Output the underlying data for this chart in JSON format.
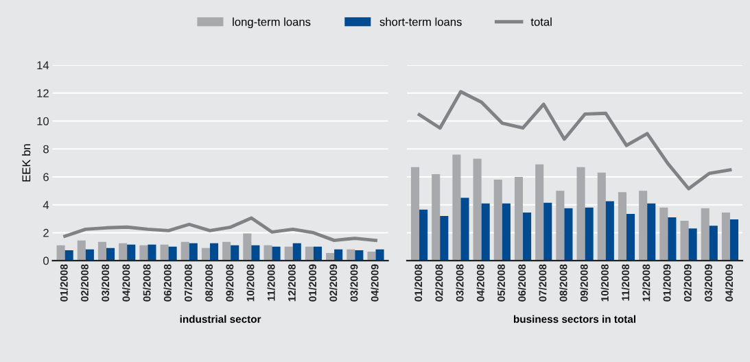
{
  "chart_data": [
    {
      "type": "bar",
      "xlabel": "industrial sector",
      "ylabel": "EEK bn",
      "legend": "top",
      "grid": "y",
      "ylim": [
        0,
        14
      ],
      "yticks": [
        0,
        2,
        4,
        6,
        8,
        10,
        12,
        14
      ],
      "categories": [
        "01/2008",
        "02/2008",
        "03/2008",
        "04/2008",
        "05/2008",
        "06/2008",
        "07/2008",
        "08/2008",
        "09/2008",
        "10/2008",
        "11/2008",
        "12/2008",
        "01/2009",
        "02/2009",
        "03/2009",
        "04/2009"
      ],
      "series": [
        {
          "name": "long-term loans",
          "color": "#a7a9ac",
          "values": [
            1.1,
            1.45,
            1.35,
            1.25,
            1.1,
            1.15,
            1.35,
            0.9,
            1.35,
            1.95,
            1.1,
            1.0,
            1.0,
            0.55,
            0.8,
            0.65
          ]
        },
        {
          "name": "short-term loans",
          "color": "#004a8f",
          "values": [
            0.75,
            0.8,
            0.9,
            1.15,
            1.15,
            1.0,
            1.25,
            1.25,
            1.1,
            1.1,
            1.0,
            1.25,
            1.0,
            0.8,
            0.75,
            0.8
          ]
        },
        {
          "name": "total",
          "type": "line",
          "color": "#808285",
          "values": [
            1.75,
            2.25,
            2.35,
            2.4,
            2.25,
            2.15,
            2.6,
            2.15,
            2.4,
            3.05,
            2.05,
            2.25,
            2.0,
            1.45,
            1.6,
            1.45
          ]
        }
      ]
    },
    {
      "type": "bar",
      "xlabel": "business sectors in total",
      "grid": "y",
      "ylim": [
        0,
        14
      ],
      "yticks": [
        0,
        2,
        4,
        6,
        8,
        10,
        12,
        14
      ],
      "tick_labels": "x",
      "categories": [
        "01/2008",
        "02/2008",
        "03/2008",
        "04/2008",
        "05/2008",
        "06/2008",
        "07/2008",
        "08/2008",
        "09/2008",
        "10/2008",
        "11/2008",
        "12/2008",
        "01/2009",
        "02/2009",
        "03/2009",
        "04/2009"
      ],
      "series": [
        {
          "name": "long-term loans",
          "color": "#a7a9ac",
          "values": [
            6.7,
            6.2,
            7.6,
            7.3,
            5.8,
            6.0,
            6.9,
            5.0,
            6.7,
            6.3,
            4.9,
            5.0,
            3.8,
            2.85,
            3.75,
            3.45
          ]
        },
        {
          "name": "short-term loans",
          "color": "#004a8f",
          "values": [
            3.65,
            3.2,
            4.5,
            4.1,
            4.1,
            3.45,
            4.15,
            3.75,
            3.8,
            4.25,
            3.35,
            4.1,
            3.1,
            2.3,
            2.5,
            2.95
          ]
        },
        {
          "name": "total",
          "type": "line",
          "color": "#808285",
          "values": [
            10.45,
            9.5,
            12.1,
            11.35,
            9.85,
            9.5,
            11.2,
            8.7,
            10.5,
            10.55,
            8.25,
            9.1,
            6.95,
            5.15,
            6.25,
            6.5
          ]
        }
      ]
    }
  ]
}
